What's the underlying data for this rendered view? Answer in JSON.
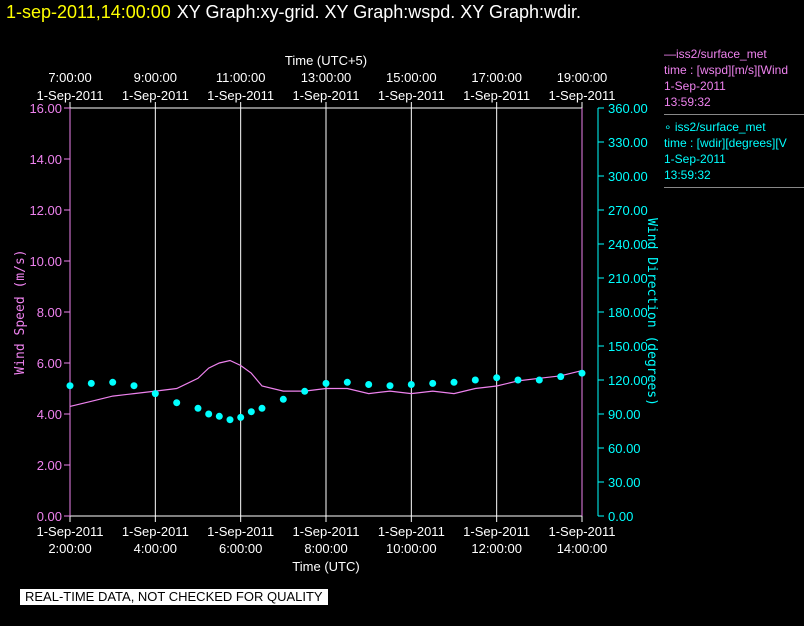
{
  "header": {
    "timestamp": "1-sep-2011,14:00:00",
    "title": "XY Graph:xy-grid.  XY Graph:wspd.  XY Graph:wdir."
  },
  "legend": [
    {
      "symbol": "—",
      "name": "iss2/surface_met",
      "desc": "time : [wspd][m/s][Wind",
      "date": "1-Sep-2011",
      "time": "13:59:32"
    },
    {
      "symbol": "∘",
      "name": "iss2/surface_met",
      "desc": "time : [wdir][degrees][V",
      "date": "1-Sep-2011",
      "time": "13:59:32"
    }
  ],
  "quality_note": "REAL-TIME DATA, NOT CHECKED FOR QUALITY",
  "colors": {
    "wspd": "#ee82ee",
    "wdir": "#00ffff",
    "axis": "#ffffff",
    "grid": "#ffffff",
    "header": "#ffff00"
  },
  "chart_data": {
    "type": "line",
    "top_axis": {
      "label": "Time (UTC+5)",
      "ticks": [
        {
          "time": "7:00:00",
          "date": "1-Sep-2011"
        },
        {
          "time": "9:00:00",
          "date": "1-Sep-2011"
        },
        {
          "time": "11:00:00",
          "date": "1-Sep-2011"
        },
        {
          "time": "13:00:00",
          "date": "1-Sep-2011"
        },
        {
          "time": "15:00:00",
          "date": "1-Sep-2011"
        },
        {
          "time": "17:00:00",
          "date": "1-Sep-2011"
        },
        {
          "time": "19:00:00",
          "date": "1-Sep-2011"
        }
      ]
    },
    "bottom_axis": {
      "label": "Time (UTC)",
      "ticks": [
        {
          "time": "2:00:00",
          "date": "1-Sep-2011"
        },
        {
          "time": "4:00:00",
          "date": "1-Sep-2011"
        },
        {
          "time": "6:00:00",
          "date": "1-Sep-2011"
        },
        {
          "time": "8:00:00",
          "date": "1-Sep-2011"
        },
        {
          "time": "10:00:00",
          "date": "1-Sep-2011"
        },
        {
          "time": "12:00:00",
          "date": "1-Sep-2011"
        },
        {
          "time": "14:00:00",
          "date": "1-Sep-2011"
        }
      ],
      "xlim_hours_utc": [
        2,
        14
      ]
    },
    "left_axis": {
      "label": "Wind Speed (m/s)",
      "ticks": [
        "0.00",
        "2.00",
        "4.00",
        "6.00",
        "8.00",
        "10.00",
        "12.00",
        "14.00",
        "16.00"
      ],
      "ylim": [
        0,
        16
      ]
    },
    "right_axis": {
      "label": "Wind Direction (degrees)",
      "ticks": [
        "0.00",
        "30.00",
        "60.00",
        "90.00",
        "120.00",
        "150.00",
        "180.00",
        "210.00",
        "240.00",
        "270.00",
        "300.00",
        "330.00",
        "360.00"
      ],
      "ylim": [
        0,
        360
      ]
    },
    "grid": "vertical",
    "series": [
      {
        "name": "iss2/surface_met time : [wspd][m/s]",
        "axis": "left",
        "style": "line",
        "x_hours_utc": [
          2.0,
          2.5,
          3.0,
          3.5,
          4.0,
          4.5,
          5.0,
          5.25,
          5.5,
          5.75,
          6.0,
          6.25,
          6.5,
          7.0,
          7.5,
          8.0,
          8.5,
          9.0,
          9.5,
          10.0,
          10.5,
          11.0,
          11.5,
          12.0,
          12.5,
          13.0,
          13.5,
          14.0
        ],
        "values": [
          4.3,
          4.5,
          4.7,
          4.8,
          4.9,
          5.0,
          5.4,
          5.8,
          6.0,
          6.1,
          5.9,
          5.6,
          5.1,
          4.9,
          4.9,
          5.0,
          5.0,
          4.8,
          4.9,
          4.8,
          4.9,
          4.8,
          5.0,
          5.1,
          5.3,
          5.4,
          5.5,
          5.7
        ]
      },
      {
        "name": "iss2/surface_met time : [wdir][degrees]",
        "axis": "right",
        "style": "markers",
        "x_hours_utc": [
          2.0,
          2.5,
          3.0,
          3.5,
          4.0,
          4.5,
          5.0,
          5.25,
          5.5,
          5.75,
          6.0,
          6.25,
          6.5,
          7.0,
          7.5,
          8.0,
          8.5,
          9.0,
          9.5,
          10.0,
          10.5,
          11.0,
          11.5,
          12.0,
          12.5,
          13.0,
          13.5,
          14.0
        ],
        "values": [
          115,
          117,
          118,
          115,
          108,
          100,
          95,
          90,
          88,
          85,
          87,
          92,
          95,
          103,
          110,
          117,
          118,
          116,
          115,
          116,
          117,
          118,
          120,
          122,
          120,
          120,
          123,
          126
        ]
      }
    ]
  }
}
